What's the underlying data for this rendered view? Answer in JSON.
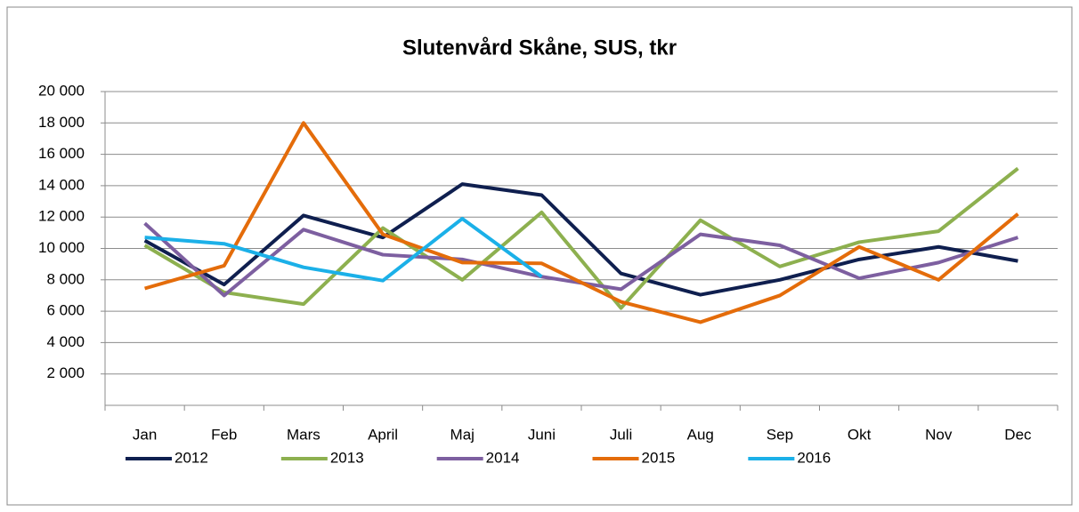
{
  "chart_data": {
    "type": "line",
    "title": "Slutenvård Skåne, SUS, tkr",
    "categories": [
      "Jan",
      "Feb",
      "Mars",
      "April",
      "Maj",
      "Juni",
      "Juli",
      "Aug",
      "Sep",
      "Okt",
      "Nov",
      "Dec"
    ],
    "series": [
      {
        "name": "2012",
        "color": "#0f1f4f",
        "values": [
          10500,
          7700,
          12100,
          10700,
          14100,
          13400,
          8400,
          7050,
          8000,
          9300,
          10100,
          9200
        ]
      },
      {
        "name": "2013",
        "color": "#8db04f",
        "values": [
          10200,
          7200,
          6450,
          11300,
          8000,
          12300,
          6200,
          11800,
          8850,
          10400,
          11100,
          15100
        ]
      },
      {
        "name": "2014",
        "color": "#7d5fa0",
        "values": [
          11600,
          7000,
          11200,
          9600,
          9300,
          8200,
          7400,
          10900,
          10200,
          8100,
          9100,
          10700
        ]
      },
      {
        "name": "2015",
        "color": "#e46c0a",
        "values": [
          7450,
          8900,
          18000,
          10900,
          9100,
          9050,
          6600,
          5300,
          7000,
          10100,
          8000,
          12200
        ]
      },
      {
        "name": "2016",
        "color": "#1bb0e8",
        "values": [
          10700,
          10300,
          8800,
          7950,
          11900,
          8200,
          null,
          null,
          null,
          null,
          null,
          null
        ]
      }
    ],
    "ylim": [
      0,
      20000
    ],
    "yticks": [
      {
        "value": 2000,
        "label": "2 000"
      },
      {
        "value": 4000,
        "label": "4 000"
      },
      {
        "value": 6000,
        "label": "6 000"
      },
      {
        "value": 8000,
        "label": "8 000"
      },
      {
        "value": 10000,
        "label": "10 000"
      },
      {
        "value": 12000,
        "label": "12 000"
      },
      {
        "value": 14000,
        "label": "14 000"
      },
      {
        "value": 16000,
        "label": "16 000"
      },
      {
        "value": 18000,
        "label": "18 000"
      },
      {
        "value": 20000,
        "label": "20 000"
      }
    ],
    "grid": true,
    "legend": "bottom"
  }
}
